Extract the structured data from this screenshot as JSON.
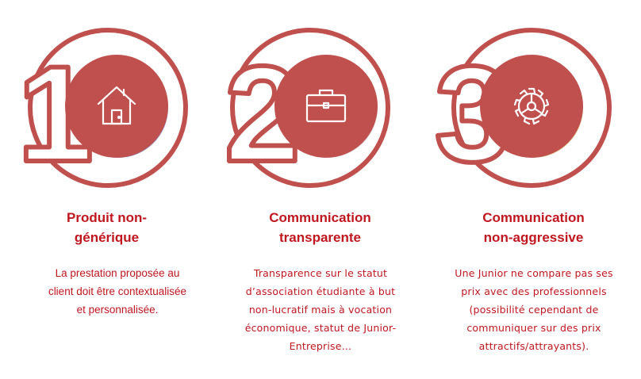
{
  "colors": {
    "accent": "#c0504d",
    "text": "#c0171f"
  },
  "steps": [
    {
      "number": "1",
      "icon": "house-icon",
      "title_lines": [
        "Produit non-",
        "générique"
      ],
      "description_lines": [
        "La prestation proposée au",
        "client doit être contextualisée",
        "et personnalisée."
      ]
    },
    {
      "number": "2",
      "icon": "briefcase-icon",
      "title_lines": [
        "Communication",
        "transparente"
      ],
      "description_lines": [
        "Transparence sur le statut",
        "d’association étudiante à but",
        "non-lucratif mais à vocation",
        "économique, statut de Junior-",
        "Entreprise…"
      ]
    },
    {
      "number": "3",
      "icon": "gear-icon",
      "title_lines": [
        "Communication",
        "non-aggressive"
      ],
      "description_lines": [
        "Une Junior ne compare pas ses",
        "prix avec des professionnels",
        "(possibilité cependant de",
        "communiquer sur des prix",
        "attractifs/attrayants)."
      ]
    }
  ]
}
